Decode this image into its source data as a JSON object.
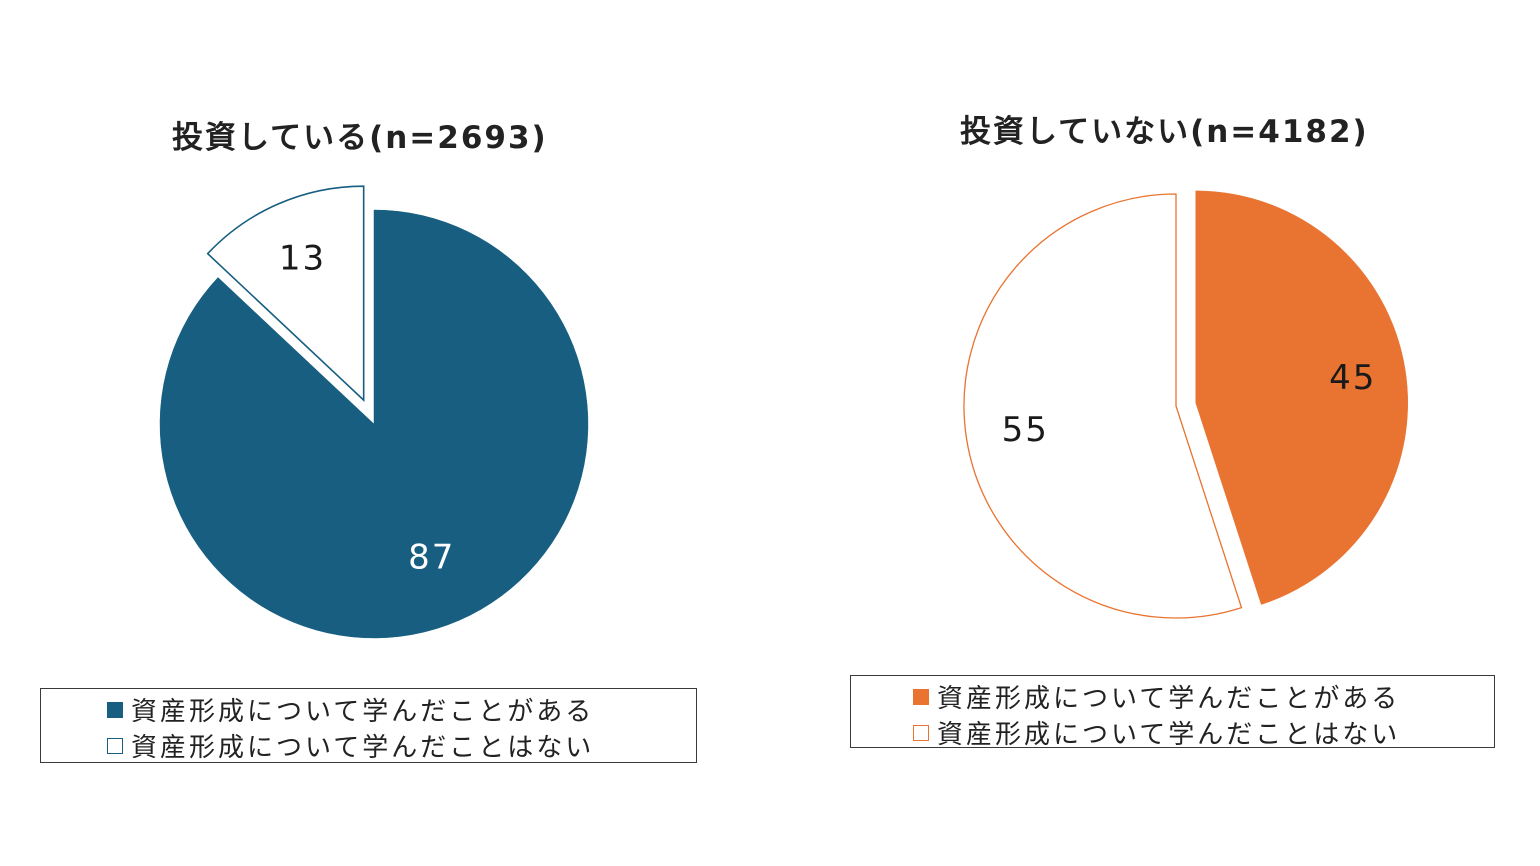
{
  "colors": {
    "left_accent": "#175e80",
    "right_accent": "#e97432",
    "no_fill": "#ffffff"
  },
  "chart_data": [
    {
      "type": "pie",
      "title": "投資している(n=2693)",
      "slices": [
        {
          "label": "資産形成について学んだことがある",
          "value": 87,
          "data_label": "87",
          "color": "#175e80",
          "exploded": false
        },
        {
          "label": "資産形成について学んだことはない",
          "value": 13,
          "data_label": "13",
          "color": "#ffffff",
          "outline": "#175e80",
          "exploded": true
        }
      ],
      "legend": {
        "placement": "bottom",
        "entries": [
          "資産形成について学んだことがある",
          "資産形成について学んだことはない"
        ]
      }
    },
    {
      "type": "pie",
      "title": "投資していない(n=4182)",
      "slices": [
        {
          "label": "資産形成について学んだことがある",
          "value": 45,
          "data_label": "45",
          "color": "#e97432",
          "exploded": true
        },
        {
          "label": "資産形成について学んだことはない",
          "value": 55,
          "data_label": "55",
          "color": "#ffffff",
          "outline": "#e97432",
          "exploded": false
        }
      ],
      "legend": {
        "placement": "bottom",
        "entries": [
          "資産形成について学んだことがある",
          "資産形成について学んだことはない"
        ]
      }
    }
  ]
}
